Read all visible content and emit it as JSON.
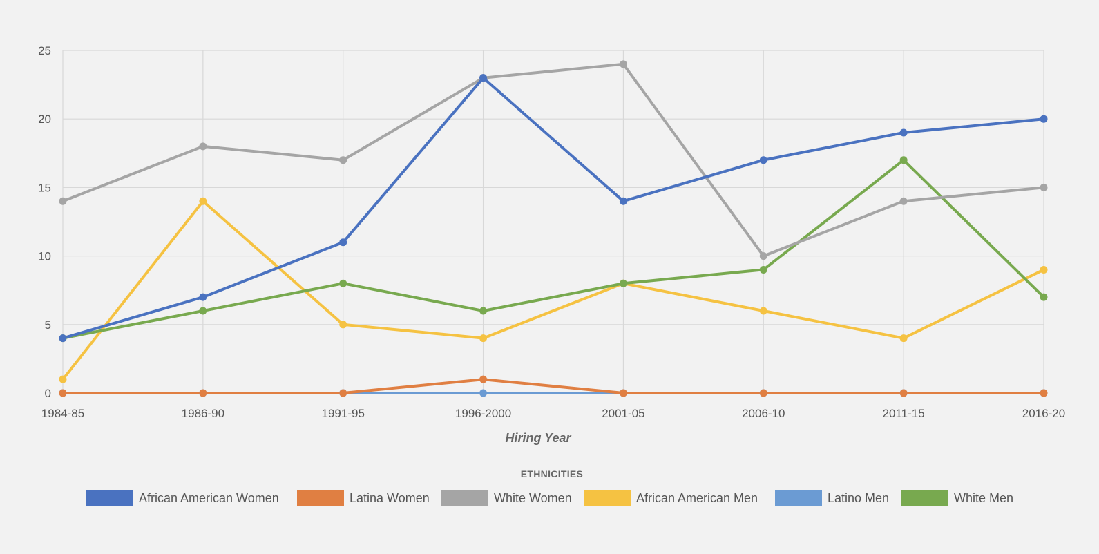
{
  "chart_data": {
    "type": "line",
    "title": "",
    "xlabel": "Hiring Year",
    "ylabel": "",
    "ylim": [
      0,
      25
    ],
    "yticks": [
      0,
      5,
      10,
      15,
      20,
      25
    ],
    "grid": true,
    "legend_title": "ETHNICITIES",
    "legend_position": "bottom-center",
    "categories": [
      "1984-85",
      "1986-90",
      "1991-95",
      "1996-2000",
      "2001-05",
      "2006-10",
      "2011-15",
      "2016-20"
    ],
    "series": [
      {
        "name": "African American Women",
        "color": "#4a72c0",
        "values": [
          4,
          7,
          11,
          23,
          14,
          17,
          19,
          20
        ]
      },
      {
        "name": "Latina Women",
        "color": "#e07f42",
        "values": [
          0,
          0,
          0,
          1,
          0,
          0,
          0,
          0
        ]
      },
      {
        "name": "White Women",
        "color": "#a5a5a5",
        "values": [
          14,
          18,
          17,
          23,
          24,
          10,
          14,
          15
        ]
      },
      {
        "name": "African American Men",
        "color": "#f5c242",
        "values": [
          1,
          14,
          5,
          4,
          8,
          6,
          4,
          9
        ]
      },
      {
        "name": "Latino Men",
        "color": "#6b9bd3",
        "values": [
          0,
          0,
          0,
          0,
          0,
          0,
          0,
          0
        ]
      },
      {
        "name": "White Men",
        "color": "#78a94f",
        "values": [
          4,
          6,
          8,
          6,
          8,
          9,
          17,
          7
        ]
      }
    ]
  }
}
